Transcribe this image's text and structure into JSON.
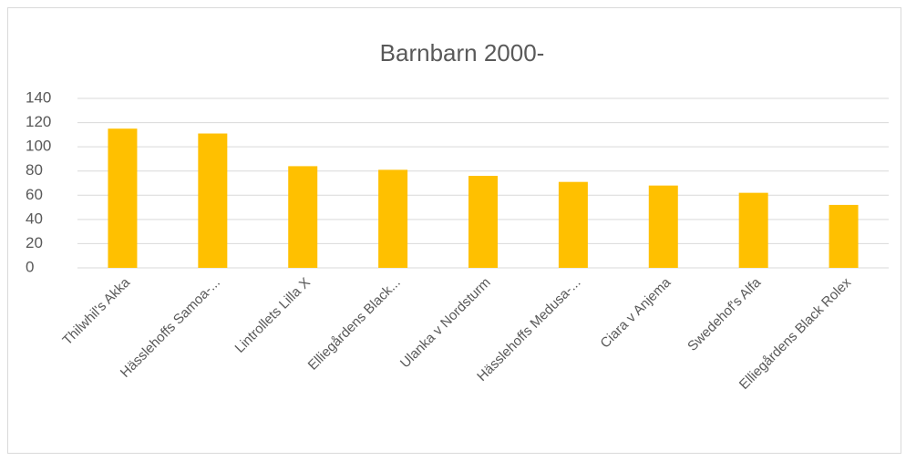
{
  "chart_data": {
    "type": "bar",
    "title": "Barnbarn 2000-",
    "categories": [
      "Thilwhil's Akka",
      "Hässlehoffs Samoa-...",
      "Lintrollets Lilla X",
      "Elliegårdens Black...",
      "Ulanka v Nordsturm",
      "Hässlehoffs Medusa-...",
      "Ciara v Anjema",
      "Swedehof's Alfa",
      "Elliegårdens Black Rolex"
    ],
    "values": [
      115,
      111,
      84,
      81,
      76,
      71,
      68,
      62,
      52
    ],
    "color": "#ffc000",
    "ylim": [
      0,
      140
    ],
    "yticks": [
      0,
      20,
      40,
      60,
      80,
      100,
      120,
      140
    ],
    "grid": true
  }
}
